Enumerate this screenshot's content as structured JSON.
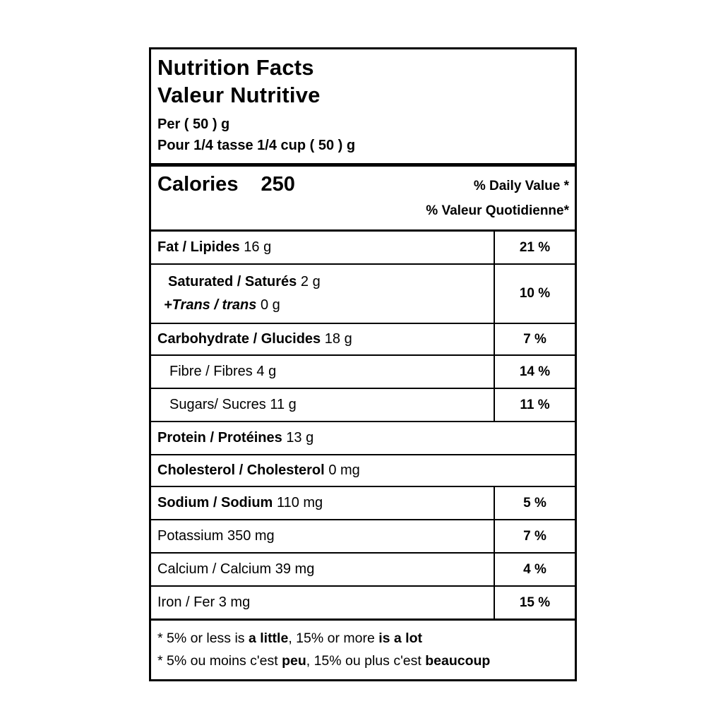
{
  "label": {
    "title_en": "Nutrition Facts",
    "title_fr": "Valeur Nutritive",
    "serving_en": "Per ( 50 ) g",
    "serving_fr": "Pour 1/4 tasse 1/4 cup ( 50 ) g",
    "calories_label": "Calories",
    "calories_value": "250",
    "dv_header_en": "% Daily Value *",
    "dv_header_fr": "% Valeur Quotidienne*",
    "rows": [
      {
        "name": "Fat / Lipides",
        "amount": "16 g",
        "dv": "21 %",
        "emphasis": "bold"
      },
      {
        "name": "Saturated / Saturés",
        "amount": "2 g",
        "name2": "+Trans / trans",
        "amount2": "0 g",
        "dv": "10 %",
        "emphasis": "bold-italic-second-line",
        "indented": true
      },
      {
        "name": "Carbohydrate / Glucides",
        "amount": "18 g",
        "dv": "7 %",
        "emphasis": "bold"
      },
      {
        "name": "Fibre / Fibres",
        "amount": "4 g",
        "dv": "14 %",
        "emphasis": "regular",
        "indented": true
      },
      {
        "name": "Sugars/ Sucres",
        "amount": "11 g",
        "dv": "11 %",
        "emphasis": "regular",
        "indented": true
      },
      {
        "name": "Protein / Protéines",
        "amount": "13 g",
        "dv": null,
        "emphasis": "bold"
      },
      {
        "name": "Cholesterol / Cholesterol",
        "amount": "0 mg",
        "dv": null,
        "emphasis": "bold"
      },
      {
        "name": "Sodium / Sodium",
        "amount": "110 mg",
        "dv": "5 %",
        "emphasis": "bold"
      },
      {
        "name": "Potassium",
        "amount": "350 mg",
        "dv": "7 %",
        "emphasis": "regular"
      },
      {
        "name": "Calcium / Calcium",
        "amount": "39 mg",
        "dv": "4 %",
        "emphasis": "regular"
      },
      {
        "name": "Iron / Fer",
        "amount": "3 mg",
        "dv": "15 %",
        "emphasis": "regular"
      }
    ],
    "footnotes": [
      {
        "parts": [
          {
            "text": "* 5% or less is ",
            "bold": false
          },
          {
            "text": "a little",
            "bold": true
          },
          {
            "text": ", 15% or more ",
            "bold": false
          },
          {
            "text": "is a lot",
            "bold": true
          }
        ]
      },
      {
        "parts": [
          {
            "text": "* 5% ou moins c'est ",
            "bold": false
          },
          {
            "text": "peu",
            "bold": true
          },
          {
            "text": ", 15% ou plus c'est ",
            "bold": false
          },
          {
            "text": "beaucoup",
            "bold": true
          }
        ]
      }
    ],
    "colors": {
      "text": "#000000",
      "background": "#ffffff",
      "border": "#000000"
    }
  }
}
